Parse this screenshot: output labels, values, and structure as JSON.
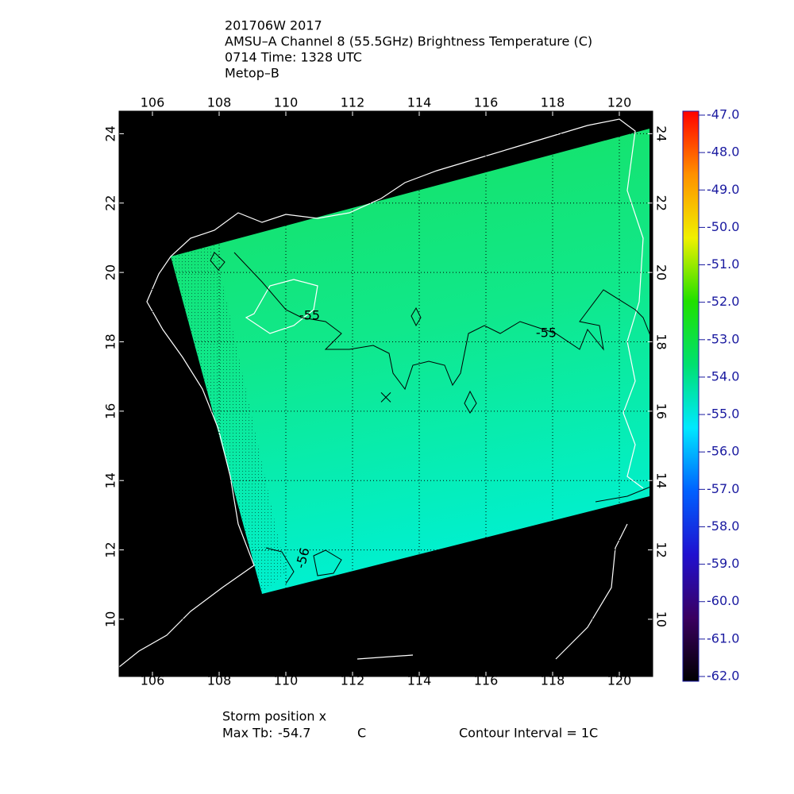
{
  "chart_data": {
    "type": "map",
    "title_lines": [
      "201706W 2017",
      "AMSU–A Channel 8 (55.5GHz) Brightness Temperature (C)",
      "0714 Time: 1328 UTC",
      "Metop–B"
    ],
    "xlim": [
      105,
      121
    ],
    "xticks": [
      106,
      108,
      110,
      112,
      114,
      116,
      118,
      120
    ],
    "ylim": [
      8.35,
      24.65
    ],
    "yticks": [
      10,
      12,
      14,
      16,
      18,
      20,
      22,
      24
    ],
    "grid": true,
    "storm_position": {
      "lon": 113,
      "lat": 16.4
    },
    "contour_labels": [
      "-55",
      "-55",
      "-56"
    ],
    "colorbar": {
      "ylim": [
        -62,
        -47
      ],
      "colors": [
        "#000000",
        "#3a0060",
        "#2010d0",
        "#0060ff",
        "#00e8ff",
        "#00e070",
        "#20e000",
        "#f0f000",
        "#ff9000",
        "#ff0000"
      ],
      "ticks": [
        {
          "value": -47,
          "label": "-47.0"
        },
        {
          "value": -48,
          "label": "-48.0"
        },
        {
          "value": -49,
          "label": "-49.0"
        },
        {
          "value": -50,
          "label": "-50.0"
        },
        {
          "value": -51,
          "label": "-51.0"
        },
        {
          "value": -52,
          "label": "-52.0"
        },
        {
          "value": -53,
          "label": "-53.0"
        },
        {
          "value": -54,
          "label": "-54.0"
        },
        {
          "value": -55,
          "label": "-55.0"
        },
        {
          "value": -56,
          "label": "-56.0"
        },
        {
          "value": -57,
          "label": "-57.0"
        },
        {
          "value": -58,
          "label": "-58.0"
        },
        {
          "value": -59,
          "label": "-59.0"
        },
        {
          "value": -60,
          "label": "-60.0"
        },
        {
          "value": -61,
          "label": "-61.0"
        },
        {
          "value": -62,
          "label": "-62.0"
        }
      ]
    },
    "storm_label": "Storm position x",
    "max_tb_label": "Max Tb:",
    "max_tb": -54.7,
    "max_tb_unit": "C",
    "contour_interval": "Contour Interval = 1C"
  }
}
